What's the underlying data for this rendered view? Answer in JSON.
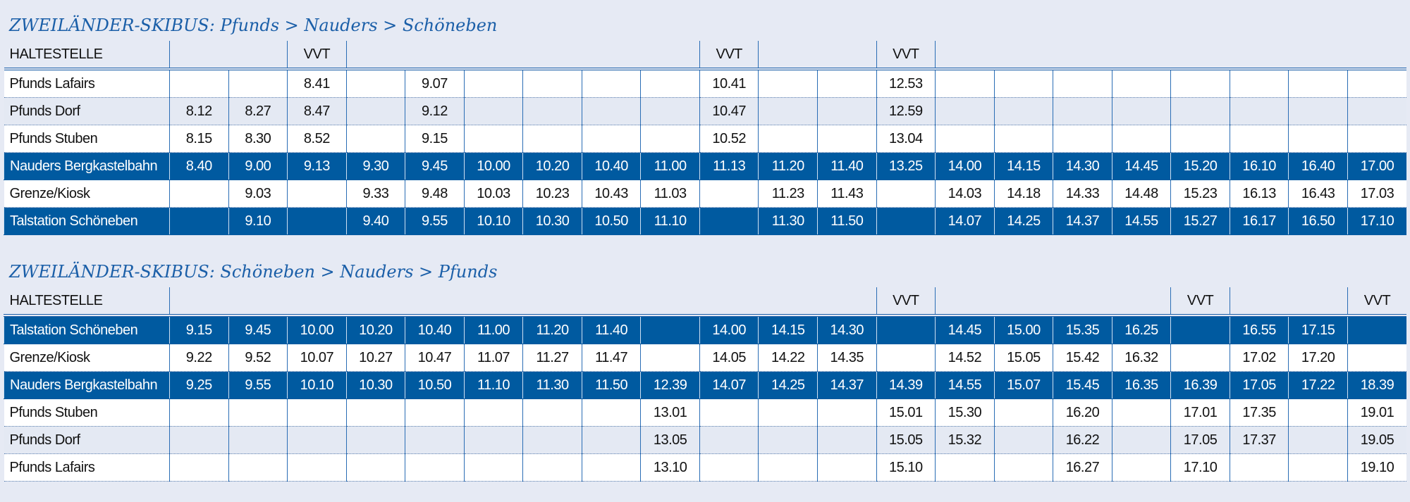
{
  "tables": [
    {
      "title": "ZWEILÄNDER-SKIBUS: Pfunds > Nauders > Schöneben",
      "header": {
        "label": "HALTESTELLE",
        "columns": [
          null,
          null,
          "VVT",
          null,
          null,
          null,
          null,
          null,
          null,
          "VVT",
          null,
          null,
          "VVT",
          null,
          null,
          null,
          null,
          null,
          null,
          null,
          null
        ]
      },
      "rows": [
        {
          "stop": "Pfunds Lafairs",
          "times": [
            null,
            null,
            "8.41",
            null,
            "9.07",
            null,
            null,
            null,
            null,
            "10.41",
            null,
            null,
            "12.53",
            null,
            null,
            null,
            null,
            null,
            null,
            null,
            null
          ]
        },
        {
          "stop": "Pfunds Dorf",
          "times": [
            "8.12",
            "8.27",
            "8.47",
            null,
            "9.12",
            null,
            null,
            null,
            null,
            "10.47",
            null,
            null,
            "12.59",
            null,
            null,
            null,
            null,
            null,
            null,
            null,
            null
          ]
        },
        {
          "stop": "Pfunds Stuben",
          "times": [
            "8.15",
            "8.30",
            "8.52",
            null,
            "9.15",
            null,
            null,
            null,
            null,
            "10.52",
            null,
            null,
            "13.04",
            null,
            null,
            null,
            null,
            null,
            null,
            null,
            null
          ]
        },
        {
          "stop": "Nauders Bergkastelbahn",
          "times": [
            "8.40",
            "9.00",
            "9.13",
            "9.30",
            "9.45",
            "10.00",
            "10.20",
            "10.40",
            "11.00",
            "11.13",
            "11.20",
            "11.40",
            "13.25",
            "14.00",
            "14.15",
            "14.30",
            "14.45",
            "15.20",
            "16.10",
            "16.40",
            "17.00"
          ]
        },
        {
          "stop": "Grenze/Kiosk",
          "times": [
            null,
            "9.03",
            null,
            "9.33",
            "9.48",
            "10.03",
            "10.23",
            "10.43",
            "11.03",
            null,
            "11.23",
            "11.43",
            null,
            "14.03",
            "14.18",
            "14.33",
            "14.48",
            "15.23",
            "16.13",
            "16.43",
            "17.03"
          ]
        },
        {
          "stop": "Talstation Schöneben",
          "times": [
            null,
            "9.10",
            null,
            "9.40",
            "9.55",
            "10.10",
            "10.30",
            "10.50",
            "11.10",
            null,
            "11.30",
            "11.50",
            null,
            "14.07",
            "14.25",
            "14.37",
            "14.55",
            "15.27",
            "16.17",
            "16.50",
            "17.10"
          ]
        }
      ]
    },
    {
      "title": "ZWEILÄNDER-SKIBUS: Schöneben > Nauders > Pfunds",
      "header": {
        "label": "HALTESTELLE",
        "columns": [
          null,
          null,
          null,
          null,
          null,
          null,
          null,
          null,
          null,
          null,
          null,
          null,
          "VVT",
          null,
          null,
          null,
          null,
          "VVT",
          null,
          null,
          "VVT"
        ]
      },
      "rows": [
        {
          "stop": "Talstation Schöneben",
          "times": [
            "9.15",
            "9.45",
            "10.00",
            "10.20",
            "10.40",
            "11.00",
            "11.20",
            "11.40",
            null,
            "14.00",
            "14.15",
            "14.30",
            null,
            "14.45",
            "15.00",
            "15.35",
            "16.25",
            null,
            "16.55",
            "17.15",
            null
          ]
        },
        {
          "stop": "Grenze/Kiosk",
          "times": [
            "9.22",
            "9.52",
            "10.07",
            "10.27",
            "10.47",
            "11.07",
            "11.27",
            "11.47",
            null,
            "14.05",
            "14.22",
            "14.35",
            null,
            "14.52",
            "15.05",
            "15.42",
            "16.32",
            null,
            "17.02",
            "17.20",
            null
          ]
        },
        {
          "stop": "Nauders Bergkastelbahn",
          "times": [
            "9.25",
            "9.55",
            "10.10",
            "10.30",
            "10.50",
            "11.10",
            "11.30",
            "11.50",
            "12.39",
            "14.07",
            "14.25",
            "14.37",
            "14.39",
            "14.55",
            "15.07",
            "15.45",
            "16.35",
            "16.39",
            "17.05",
            "17.22",
            "18.39"
          ]
        },
        {
          "stop": "Pfunds Stuben",
          "times": [
            null,
            null,
            null,
            null,
            null,
            null,
            null,
            null,
            "13.01",
            null,
            null,
            null,
            "15.01",
            "15.30",
            null,
            "16.20",
            null,
            "17.01",
            "17.35",
            null,
            "19.01"
          ]
        },
        {
          "stop": "Pfunds Dorf",
          "times": [
            null,
            null,
            null,
            null,
            null,
            null,
            null,
            null,
            "13.05",
            null,
            null,
            null,
            "15.05",
            "15.32",
            null,
            "16.22",
            null,
            "17.05",
            "17.37",
            null,
            "19.05"
          ]
        },
        {
          "stop": "Pfunds Lafairs",
          "times": [
            null,
            null,
            null,
            null,
            null,
            null,
            null,
            null,
            "13.10",
            null,
            null,
            null,
            "15.10",
            null,
            null,
            "16.27",
            null,
            "17.10",
            null,
            null,
            "19.10"
          ]
        }
      ]
    }
  ]
}
